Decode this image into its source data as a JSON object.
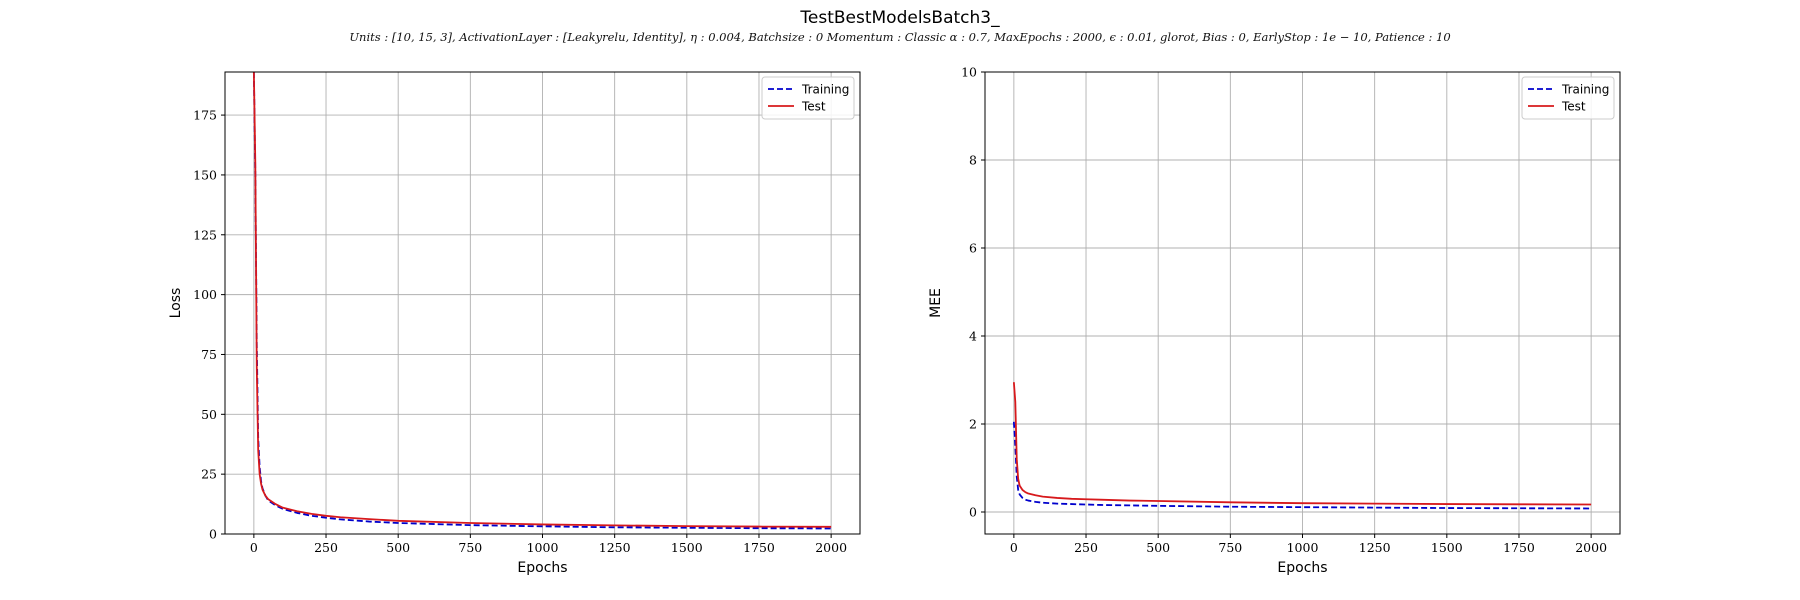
{
  "figure": {
    "title": "TestBestModelsBatch3_",
    "subtitle": "Units : [10, 15, 3], ActivationLayer : [Leakyrelu, Identity], η : 0.004, Batchsize : 0 Momentum : Classic α : 0.7, MaxEpochs : 2000, ϵ : 0.01, glorot, Bias : 0, EarlyStop : 1e − 10, Patience : 10"
  },
  "colors": {
    "training": "#0000cc",
    "test": "#d7191c",
    "grid": "#b0b0b0",
    "axis": "#000000"
  },
  "chart_data": [
    {
      "type": "line",
      "xlabel": "Epochs",
      "ylabel": "Loss",
      "xlim": [
        -100,
        2100
      ],
      "ylim": [
        0,
        193
      ],
      "xticks": [
        0,
        250,
        500,
        750,
        1000,
        1250,
        1500,
        1750,
        2000
      ],
      "yticks": [
        0,
        25,
        50,
        75,
        100,
        125,
        150,
        175
      ],
      "grid": true,
      "legend": "top-right",
      "series": [
        {
          "name": "Training",
          "style": "dashed",
          "x": [
            0,
            5,
            10,
            15,
            20,
            25,
            30,
            40,
            50,
            75,
            100,
            150,
            200,
            250,
            300,
            400,
            500,
            750,
            1000,
            1250,
            1500,
            1750,
            2000
          ],
          "y": [
            193,
            150,
            80,
            40,
            28,
            22,
            19,
            16,
            14,
            12,
            10.5,
            8.8,
            7.6,
            6.8,
            6.1,
            5.2,
            4.6,
            3.7,
            3.2,
            2.8,
            2.6,
            2.4,
            2.3
          ]
        },
        {
          "name": "Test",
          "style": "solid",
          "x": [
            0,
            5,
            10,
            15,
            20,
            25,
            30,
            40,
            50,
            75,
            100,
            150,
            200,
            250,
            300,
            400,
            500,
            750,
            1000,
            1250,
            1500,
            1750,
            2000
          ],
          "y": [
            193,
            155,
            70,
            35,
            25,
            21,
            18.5,
            16,
            14.5,
            12.5,
            11,
            9.5,
            8.4,
            7.6,
            7.0,
            6.2,
            5.5,
            4.6,
            4.0,
            3.6,
            3.3,
            3.1,
            3.0
          ]
        }
      ]
    },
    {
      "type": "line",
      "xlabel": "Epochs",
      "ylabel": "MEE",
      "xlim": [
        -100,
        2100
      ],
      "ylim": [
        -0.5,
        10
      ],
      "xticks": [
        0,
        250,
        500,
        750,
        1000,
        1250,
        1500,
        1750,
        2000
      ],
      "yticks": [
        0,
        2,
        4,
        6,
        8,
        10
      ],
      "grid": true,
      "legend": "top-right",
      "series": [
        {
          "name": "Training",
          "style": "dashed",
          "x": [
            0,
            5,
            10,
            15,
            20,
            30,
            40,
            50,
            75,
            100,
            150,
            200,
            250,
            300,
            400,
            500,
            750,
            1000,
            1250,
            1500,
            1750,
            2000
          ],
          "y": [
            2.05,
            1.5,
            0.8,
            0.5,
            0.4,
            0.32,
            0.28,
            0.26,
            0.23,
            0.21,
            0.19,
            0.18,
            0.17,
            0.16,
            0.15,
            0.14,
            0.12,
            0.11,
            0.1,
            0.09,
            0.085,
            0.08
          ]
        },
        {
          "name": "Test",
          "style": "solid",
          "x": [
            0,
            5,
            10,
            15,
            20,
            30,
            40,
            50,
            75,
            100,
            150,
            200,
            250,
            300,
            400,
            500,
            750,
            1000,
            1250,
            1500,
            1750,
            2000
          ],
          "y": [
            2.95,
            2.5,
            1.2,
            0.75,
            0.6,
            0.5,
            0.45,
            0.42,
            0.38,
            0.35,
            0.32,
            0.3,
            0.29,
            0.28,
            0.26,
            0.25,
            0.22,
            0.2,
            0.19,
            0.18,
            0.175,
            0.17
          ]
        }
      ]
    }
  ]
}
